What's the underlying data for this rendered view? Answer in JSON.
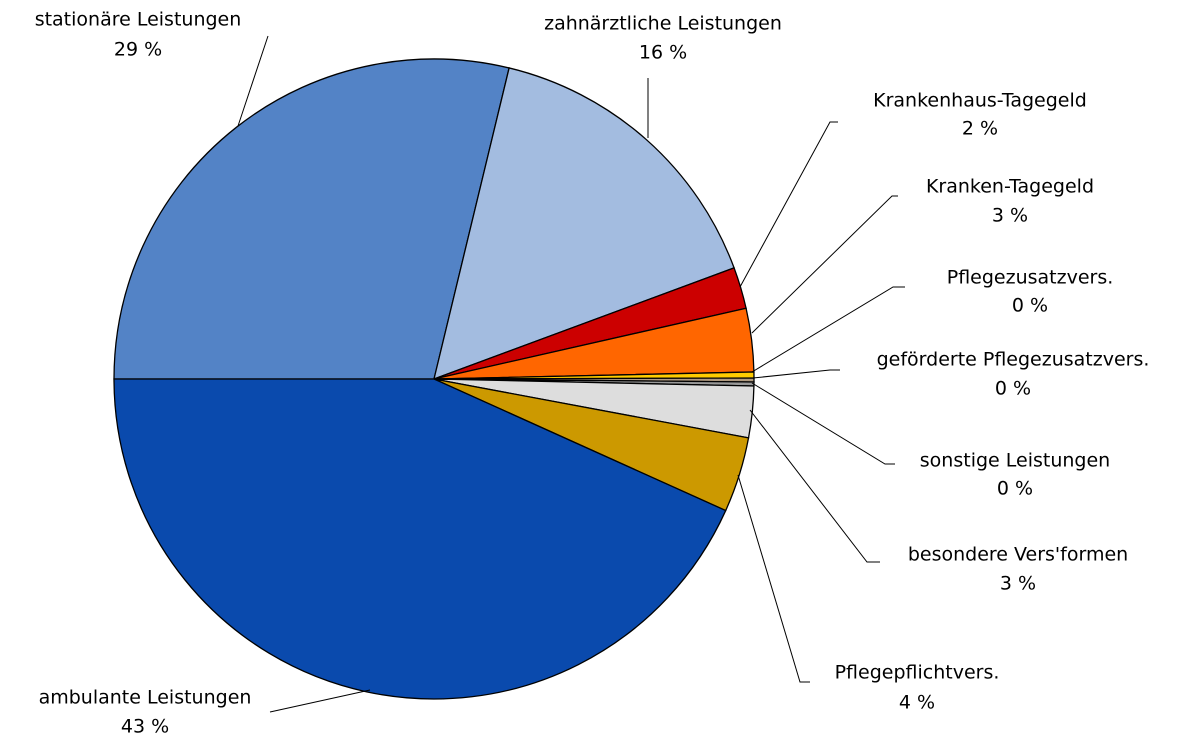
{
  "chart_data": {
    "type": "pie",
    "categories": [
      "stationäre Leistungen",
      "zahnärztliche Leistungen",
      "Krankenhaus-Tagegeld",
      "Kranken-Tagegeld",
      "Pflegezusatzvers.",
      "geförderte Pflegezusatzvers.",
      "sonstige Leistungen",
      "besondere Vers'formen",
      "Pflegepflichtvers.",
      "ambulante Leistungen"
    ],
    "values": [
      28.8,
      15.6,
      2.1,
      3.2,
      0.3,
      0.2,
      0.2,
      2.6,
      3.8,
      43.3
    ],
    "value_labels": [
      "29 %",
      "16 %",
      "2 %",
      "3 %",
      "0 %",
      "0 %",
      "0 %",
      "3 %",
      "4 %",
      "43 %"
    ],
    "colors": [
      "#5383c6",
      "#a3bce0",
      "#cc0000",
      "#ff6600",
      "#ffcc00",
      "#b09a80",
      "#999999",
      "#dddddd",
      "#cc9900",
      "#0a4aad"
    ]
  }
}
